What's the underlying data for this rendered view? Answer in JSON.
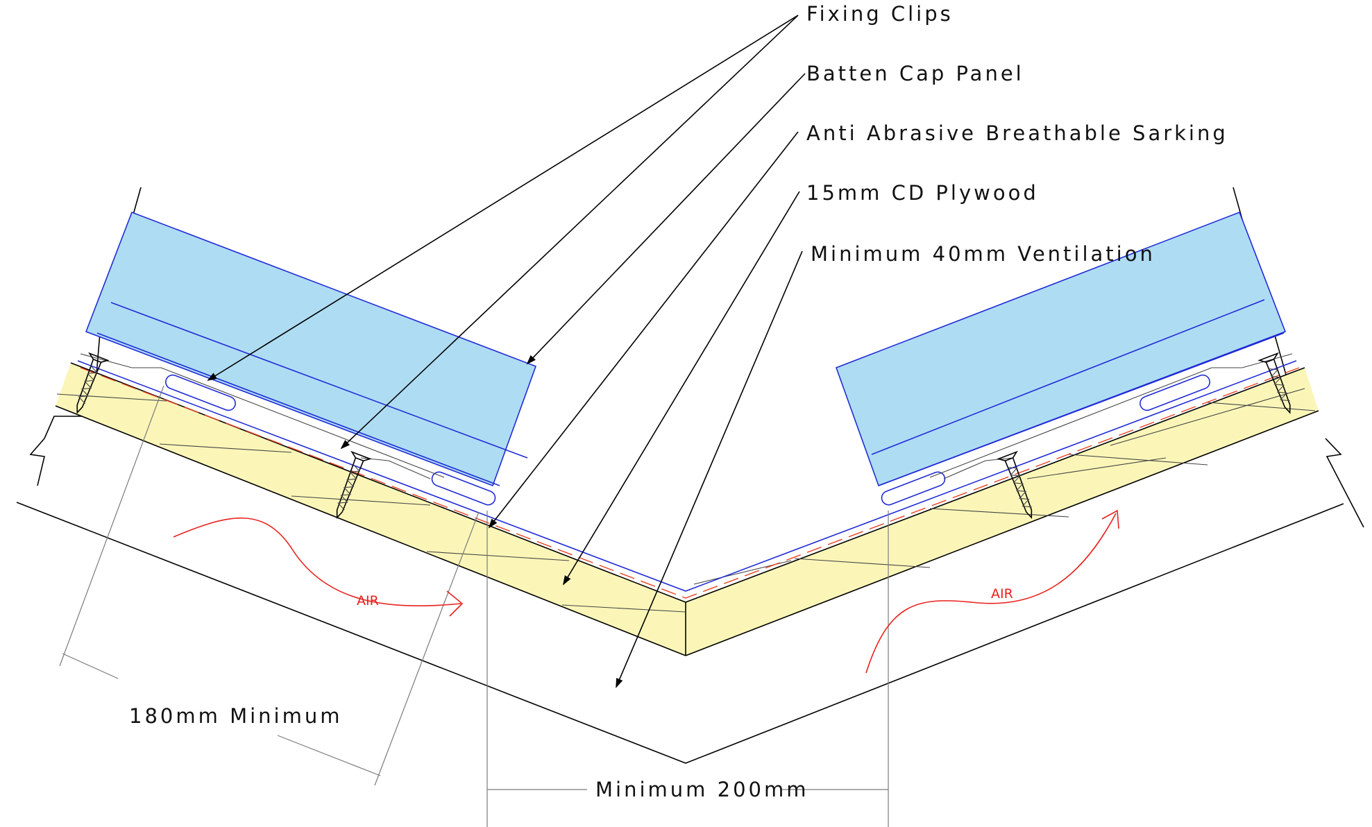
{
  "labels": {
    "fixing_clips": "Fixing Clips",
    "batten_cap_panel": "Batten Cap Panel",
    "sarking": "Anti Abrasive Breathable Sarking",
    "plywood": "15mm CD Plywood",
    "ventilation": "Minimum 40mm Ventilation"
  },
  "dimensions": {
    "overlap": "180mm Minimum",
    "gap": "Minimum 200mm"
  },
  "airflow": {
    "left": "AIR",
    "right": "AIR"
  },
  "colors": {
    "panel_fill": "#aedcf3",
    "panel_edge": "#1f2bd6",
    "plywood_fill": "#fbf6b8",
    "sarking": "#e8401c",
    "air": "#e8201c",
    "line": "#000000",
    "dimension": "#7a7a7a"
  }
}
